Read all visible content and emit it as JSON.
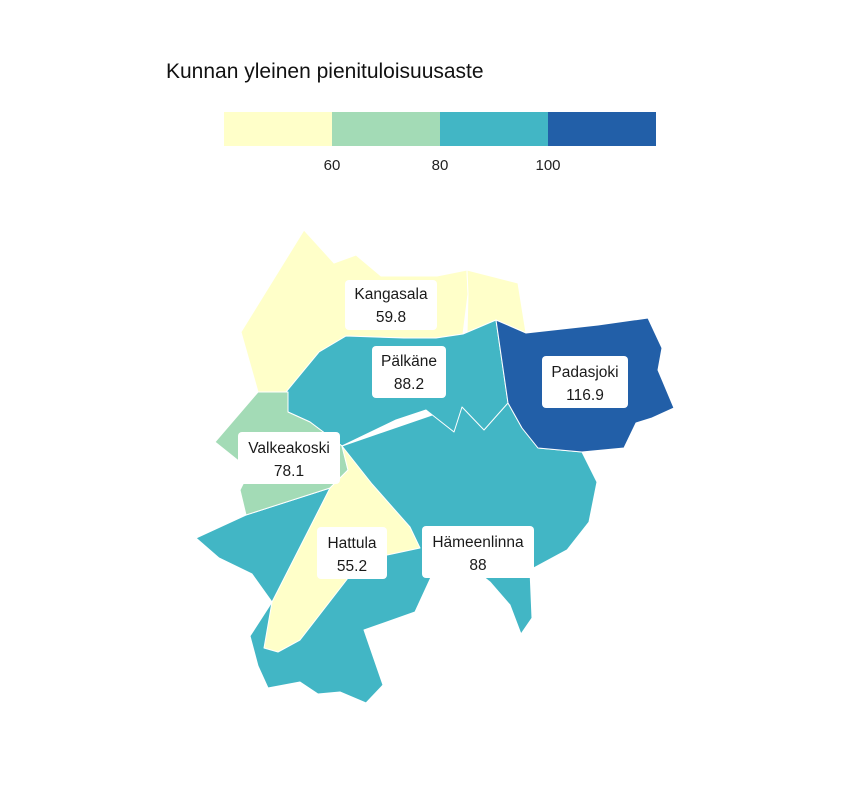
{
  "legend": {
    "title": "Kunnan yleinen pienituloisuusaste",
    "ticks": [
      "60",
      "80",
      "100"
    ],
    "bins": [
      {
        "range": "< 60",
        "color": "#ffffc9"
      },
      {
        "range": "60–80",
        "color": "#a3dbb6"
      },
      {
        "range": "80–100",
        "color": "#42b6c5"
      },
      {
        "range": "> 100",
        "color": "#225fa8"
      }
    ]
  },
  "map": {
    "municipalities": [
      {
        "name": "Kangasala",
        "value": "59.8",
        "color": "#ffffc9"
      },
      {
        "name": "Pälkäne",
        "value": "88.2",
        "color": "#42b6c5"
      },
      {
        "name": "Padasjoki",
        "value": "116.9",
        "color": "#225fa8"
      },
      {
        "name": "Valkeakoski",
        "value": "78.1",
        "color": "#a3dbb6"
      },
      {
        "name": "Hattula",
        "value": "55.2",
        "color": "#ffffc9"
      },
      {
        "name": "Hämeenlinna",
        "value": "88",
        "color": "#42b6c5"
      }
    ]
  }
}
